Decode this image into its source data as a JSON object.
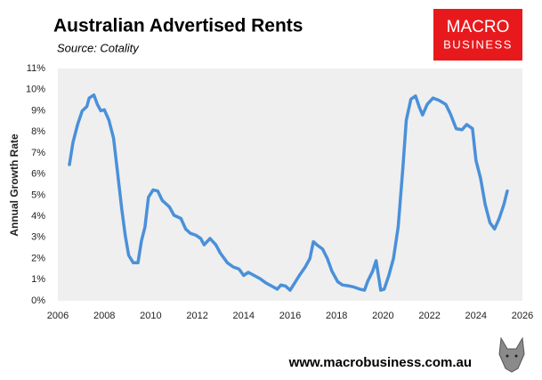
{
  "chart_data": {
    "type": "line",
    "title": "Australian Advertised Rents",
    "subtitle": "Source: Cotality",
    "ylabel": "Annual Growth Rate",
    "color": "#4a90d9",
    "x": [
      2006.5,
      2006.65,
      2006.85,
      2007.05,
      2007.25,
      2007.35,
      2007.55,
      2007.7,
      2007.85,
      2008.0,
      2008.2,
      2008.4,
      2008.55,
      2008.75,
      2008.9,
      2009.05,
      2009.25,
      2009.45,
      2009.6,
      2009.75,
      2009.9,
      2010.1,
      2010.3,
      2010.5,
      2010.8,
      2011.0,
      2011.3,
      2011.5,
      2011.7,
      2011.95,
      2012.15,
      2012.3,
      2012.55,
      2012.8,
      2013.0,
      2013.3,
      2013.55,
      2013.8,
      2014.0,
      2014.2,
      2014.45,
      2014.7,
      2014.95,
      2015.2,
      2015.45,
      2015.6,
      2015.8,
      2016.0,
      2016.2,
      2016.4,
      2016.65,
      2016.85,
      2017.0,
      2017.15,
      2017.4,
      2017.6,
      2017.8,
      2018.05,
      2018.25,
      2018.55,
      2018.75,
      2019.0,
      2019.2,
      2019.35,
      2019.55,
      2019.7,
      2019.8,
      2019.9,
      2020.05,
      2020.25,
      2020.45,
      2020.65,
      2020.85,
      2021.0,
      2021.2,
      2021.4,
      2021.55,
      2021.7,
      2021.9,
      2022.15,
      2022.4,
      2022.7,
      2022.9,
      2023.15,
      2023.4,
      2023.6,
      2023.85,
      2024.0,
      2024.2,
      2024.4,
      2024.6,
      2024.8,
      2025.0,
      2025.2,
      2025.35
    ],
    "values": [
      6.45,
      7.5,
      8.35,
      9.0,
      9.2,
      9.6,
      9.75,
      9.3,
      9.0,
      9.05,
      8.55,
      7.7,
      6.25,
      4.35,
      3.1,
      2.15,
      1.8,
      1.8,
      2.85,
      3.5,
      4.9,
      5.25,
      5.2,
      4.75,
      4.45,
      4.05,
      3.9,
      3.4,
      3.2,
      3.1,
      2.95,
      2.65,
      2.95,
      2.65,
      2.25,
      1.8,
      1.6,
      1.5,
      1.2,
      1.35,
      1.2,
      1.05,
      0.85,
      0.7,
      0.55,
      0.75,
      0.7,
      0.5,
      0.85,
      1.2,
      1.6,
      2.0,
      2.8,
      2.65,
      2.45,
      2.0,
      1.4,
      0.9,
      0.75,
      0.7,
      0.65,
      0.55,
      0.5,
      0.95,
      1.4,
      1.9,
      1.2,
      0.5,
      0.55,
      1.2,
      2.0,
      3.5,
      6.25,
      8.55,
      9.55,
      9.7,
      9.2,
      8.8,
      9.3,
      9.6,
      9.5,
      9.3,
      8.85,
      8.15,
      8.1,
      8.35,
      8.15,
      6.65,
      5.8,
      4.55,
      3.7,
      3.4,
      3.9,
      4.55,
      5.2
    ],
    "xlim": [
      2006,
      2026
    ],
    "xticks": [
      2006,
      2008,
      2010,
      2012,
      2014,
      2016,
      2018,
      2020,
      2022,
      2024,
      2026
    ],
    "ylim": [
      0,
      11
    ],
    "yticks": [
      {
        "value": 0,
        "label": "0%"
      },
      {
        "value": 1,
        "label": "1%"
      },
      {
        "value": 2,
        "label": "2%"
      },
      {
        "value": 3,
        "label": "3%"
      },
      {
        "value": 4,
        "label": "4%"
      },
      {
        "value": 5,
        "label": "5%"
      },
      {
        "value": 6,
        "label": "6%"
      },
      {
        "value": 7,
        "label": "7%"
      },
      {
        "value": 8,
        "label": "8%"
      },
      {
        "value": 9,
        "label": "9%"
      },
      {
        "value": 10,
        "label": "10%"
      },
      {
        "value": 11,
        "label": "11%"
      }
    ]
  },
  "branding": {
    "logo_top": "MACRO",
    "logo_bottom": "BUSINESS",
    "url": "www.macrobusiness.com.au"
  }
}
